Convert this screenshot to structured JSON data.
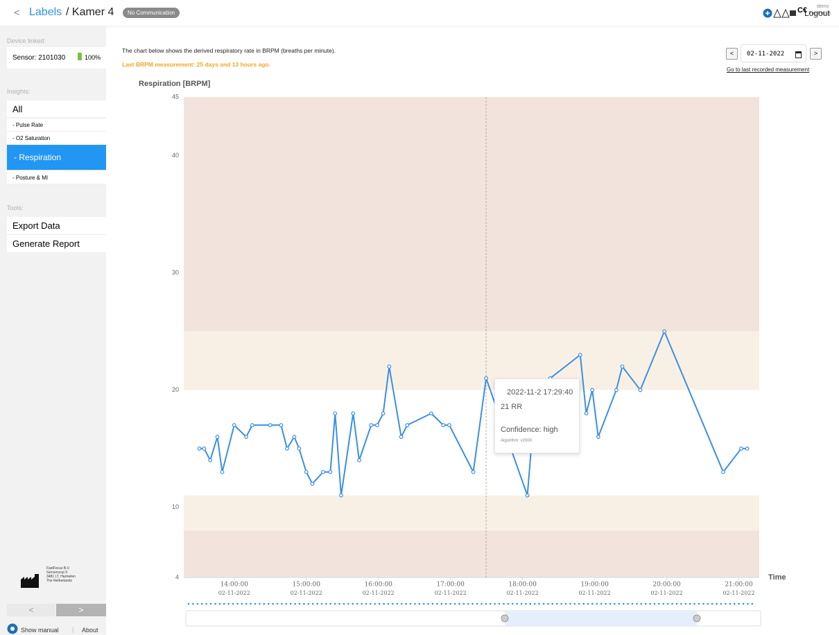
{
  "header": {
    "back": "<",
    "breadcrumb": "Labels",
    "title": "/ Kamer 4",
    "status": "No Communication",
    "user": "demo",
    "org": "FastFocus",
    "logout": "Logout"
  },
  "sidebar": {
    "device_heading": "Device linked:",
    "sensor": "Sensor: 2101030",
    "battery": "100%",
    "insights_heading": "Insights:",
    "insights": [
      "All",
      "- Pulse Rate",
      "- O2 Saturation",
      "- Respiration",
      "- Posture & MI"
    ],
    "tools_heading": "Tools:",
    "tools": [
      "Export Data",
      "Generate Report"
    ],
    "company": [
      "FastFocus B.V.",
      "Gerverscop 9",
      "3481 LT, Harmelen",
      "The Netherlands"
    ],
    "prev": "<",
    "next": ">",
    "manual": "Show manual",
    "about": "About"
  },
  "main": {
    "description": "The chart below shows the derived respiratory rate in BRPM (breaths per minute).",
    "last_measurement": "Last BRPM measurement: 25 days and 13 hours ago.",
    "date_prev": "<",
    "date": "02-11-2022",
    "date_next": ">",
    "last_link": "Go to last recorded measurement"
  },
  "chart_data": {
    "type": "line",
    "y_label": "Respiration [BRPM]",
    "x_label": "Time",
    "color": "#3a8fe4",
    "markers": true,
    "grid": false,
    "x": [
      "13:31:00",
      "13:35:00",
      "13:40:00",
      "13:46:00",
      "13:50:00",
      "14:00:00",
      "14:10:00",
      "14:15:00",
      "14:30:00",
      "14:39:00",
      "14:44:00",
      "14:50:00",
      "14:54:00",
      "15:00:00",
      "15:05:00",
      "15:14:00",
      "15:20:00",
      "15:24:00",
      "15:29:00",
      "15:39:00",
      "15:44:00",
      "15:54:00",
      "15:59:00",
      "16:04:00",
      "16:09:00",
      "16:19:00",
      "16:24:00",
      "16:44:00",
      "16:54:00",
      "16:59:00",
      "17:19:00",
      "17:29:40",
      "18:04:00",
      "18:08:00",
      "18:23:00",
      "18:48:00",
      "18:53:00",
      "18:58:00",
      "19:03:00",
      "19:18:00",
      "19:23:00",
      "19:38:00",
      "19:58:00",
      "20:47:00",
      "21:02:00",
      "21:07:00"
    ],
    "values": [
      15,
      15,
      14,
      16,
      13,
      17,
      16,
      17,
      17,
      17,
      15,
      16,
      15,
      13,
      12,
      13,
      13,
      18,
      11,
      18,
      14,
      17,
      17,
      18,
      22,
      16,
      17,
      18,
      17,
      17,
      13,
      21,
      11,
      16,
      21,
      23,
      18,
      20,
      16,
      20,
      22,
      20,
      25,
      13,
      15,
      15
    ],
    "xlim": [
      "13:18:00",
      "21:17:00"
    ],
    "xticks": [
      "14:00:00",
      "15:00:00",
      "16:00:00",
      "17:00:00",
      "18:00:00",
      "19:00:00",
      "20:00:00",
      "21:00:00"
    ],
    "xtick_date": "02-11-2022",
    "ylim": [
      4,
      45
    ],
    "yticks": [
      4,
      10,
      20,
      30,
      40,
      45
    ],
    "bands": [
      {
        "from": 25,
        "to": 45,
        "color": "#f2e4dc"
      },
      {
        "from": 20,
        "to": 25,
        "color": "#f9f0e5"
      },
      {
        "from": 8,
        "to": 11,
        "color": "#f9f0e5"
      },
      {
        "from": 4,
        "to": 8,
        "color": "#f2e4dc"
      }
    ]
  },
  "tooltip": {
    "time": "2022-11-2 17:29:40",
    "reading": "21 RR",
    "confidence": "Confidence: high",
    "algorithm": "Algorithm: v2000"
  }
}
